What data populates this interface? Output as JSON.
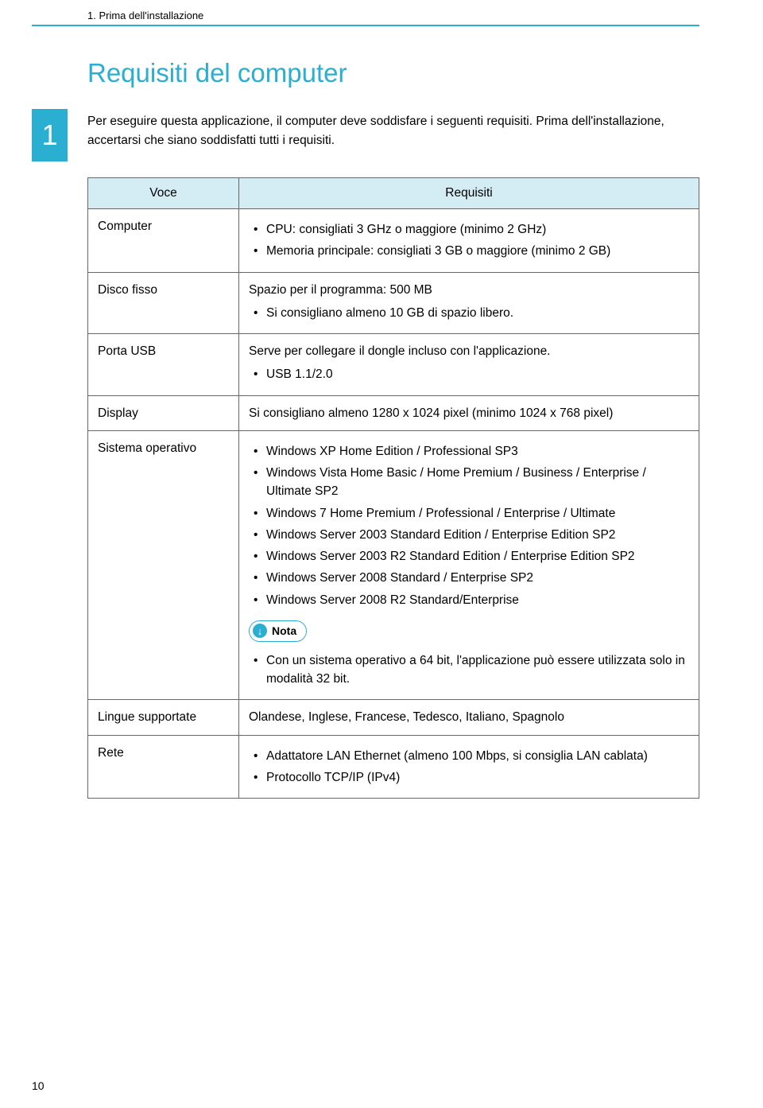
{
  "header": {
    "section": "1. Prima dell'installazione"
  },
  "title": "Requisiti del computer",
  "chapter_number": "1",
  "intro": "Per eseguire questa applicazione, il computer deve soddisfare i seguenti requisiti. Prima dell'installazione, accertarsi che siano soddisfatti tutti i requisiti.",
  "table": {
    "header_voce": "Voce",
    "header_requisiti": "Requisiti",
    "rows": {
      "computer": {
        "label": "Computer",
        "items": [
          "CPU: consigliati 3 GHz o maggiore (minimo 2 GHz)",
          "Memoria principale: consigliati 3 GB o maggiore (minimo 2 GB)"
        ]
      },
      "disco": {
        "label": "Disco fisso",
        "lead": "Spazio per il programma: 500 MB",
        "items": [
          "Si consigliano almeno 10 GB di spazio libero."
        ]
      },
      "porta": {
        "label": "Porta USB",
        "lead": "Serve per collegare il dongle incluso con l'applicazione.",
        "items": [
          "USB 1.1/2.0"
        ]
      },
      "display": {
        "label": "Display",
        "text": "Si consigliano almeno 1280 x 1024 pixel (minimo 1024 x 768 pixel)"
      },
      "sistema": {
        "label": "Sistema operativo",
        "items": [
          "Windows XP Home Edition / Professional SP3",
          "Windows Vista Home Basic / Home Premium / Business / Enterprise / Ultimate SP2",
          "Windows 7 Home Premium / Professional / Enterprise / Ultimate",
          "Windows Server 2003 Standard Edition / Enterprise Edition SP2",
          "Windows Server 2003 R2 Standard Edition / Enterprise Edition SP2",
          "Windows Server 2008 Standard / Enterprise SP2",
          "Windows Server 2008 R2 Standard/Enterprise"
        ],
        "nota_label": "Nota",
        "nota_items": [
          "Con un sistema operativo a 64 bit, l'applicazione può essere utilizzata solo in modalità 32 bit."
        ]
      },
      "lingue": {
        "label": "Lingue supportate",
        "text": "Olandese, Inglese, Francese, Tedesco, Italiano, Spagnolo"
      },
      "rete": {
        "label": "Rete",
        "items": [
          "Adattatore LAN Ethernet (almeno 100 Mbps, si consiglia LAN cablata)",
          "Protocollo TCP/IP (IPv4)"
        ]
      }
    }
  },
  "page_number": "10"
}
